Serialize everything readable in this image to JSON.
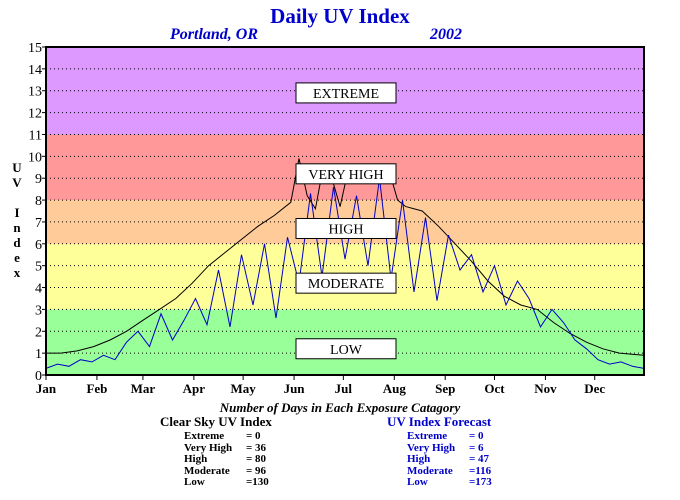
{
  "title": "Daily UV Index",
  "location": "Portland, OR",
  "year": "2002",
  "chart_data": {
    "type": "line",
    "title": "Daily UV Index",
    "ylabel": "UV Index",
    "ylim": [
      0,
      15
    ],
    "yticks": [
      0,
      1,
      2,
      3,
      4,
      5,
      6,
      7,
      8,
      9,
      10,
      11,
      12,
      13,
      14,
      15
    ],
    "xlim": [
      1,
      365
    ],
    "month_labels": [
      "Jan",
      "Feb",
      "Mar",
      "Apr",
      "May",
      "Jun",
      "Jul",
      "Aug",
      "Sep",
      "Oct",
      "Nov",
      "Dec"
    ],
    "grid": true,
    "bands": [
      {
        "label": "LOW",
        "from": 0,
        "to": 3,
        "color": "#99ff99"
      },
      {
        "label": "MODERATE",
        "from": 3,
        "to": 6,
        "color": "#ffff99"
      },
      {
        "label": "HIGH",
        "from": 6,
        "to": 8,
        "color": "#ffcc99"
      },
      {
        "label": "VERY HIGH",
        "from": 8,
        "to": 11,
        "color": "#ff9999"
      },
      {
        "label": "EXTREME",
        "from": 11,
        "to": 15,
        "color": "#dd99ff"
      }
    ],
    "band_label_values": {
      "EXTREME": 12.9,
      "VERY HIGH": 9.2,
      "HIGH": 6.7,
      "MODERATE": 4.2,
      "LOW": 1.2
    },
    "series": [
      {
        "name": "Clear Sky UV Index",
        "color": "#000000",
        "x": [
          1,
          10,
          20,
          30,
          40,
          50,
          60,
          70,
          80,
          90,
          100,
          110,
          120,
          130,
          140,
          150,
          155,
          160,
          165,
          170,
          175,
          180,
          185,
          190,
          195,
          200,
          205,
          210,
          215,
          220,
          230,
          240,
          250,
          260,
          270,
          280,
          290,
          300,
          310,
          320,
          330,
          340,
          350,
          365
        ],
        "y": [
          1.0,
          1.0,
          1.1,
          1.3,
          1.6,
          2.0,
          2.5,
          3.0,
          3.5,
          4.2,
          5.0,
          5.6,
          6.2,
          6.8,
          7.3,
          7.9,
          9.9,
          8.2,
          7.6,
          9.6,
          9.0,
          7.7,
          9.4,
          8.8,
          9.6,
          9.0,
          8.8,
          9.3,
          8.0,
          7.7,
          7.5,
          6.8,
          6.0,
          5.2,
          4.3,
          3.6,
          3.2,
          3.0,
          2.4,
          1.9,
          1.5,
          1.2,
          1.0,
          0.9
        ]
      },
      {
        "name": "UV Index Forecast",
        "color": "#0000cc",
        "x": [
          1,
          8,
          15,
          22,
          29,
          36,
          43,
          50,
          57,
          64,
          71,
          78,
          85,
          92,
          99,
          106,
          113,
          120,
          127,
          134,
          141,
          148,
          155,
          162,
          169,
          176,
          183,
          190,
          197,
          204,
          211,
          218,
          225,
          232,
          239,
          246,
          253,
          260,
          267,
          274,
          281,
          288,
          295,
          302,
          309,
          316,
          323,
          330,
          337,
          344,
          351,
          358,
          365
        ],
        "y": [
          0.3,
          0.5,
          0.4,
          0.7,
          0.6,
          0.9,
          0.7,
          1.5,
          2.0,
          1.3,
          2.8,
          1.6,
          2.5,
          3.5,
          2.3,
          4.8,
          2.2,
          5.5,
          3.2,
          6.0,
          2.6,
          6.3,
          4.2,
          8.3,
          4.5,
          8.6,
          5.3,
          8.2,
          5.0,
          9.0,
          4.4,
          8.0,
          3.8,
          7.2,
          3.4,
          6.4,
          4.8,
          5.5,
          3.8,
          5.0,
          3.2,
          4.3,
          3.5,
          2.2,
          3.0,
          2.4,
          1.6,
          1.2,
          0.7,
          0.5,
          0.6,
          0.4,
          0.3
        ]
      }
    ]
  },
  "stats": {
    "caption": "Number of Days in Each Exposure Catagory",
    "clear_sky": {
      "heading": "Clear Sky UV Index",
      "rows": [
        {
          "label": "Extreme",
          "value": "=    0"
        },
        {
          "label": "Very High",
          "value": "=  36"
        },
        {
          "label": "High",
          "value": "=  80"
        },
        {
          "label": "Moderate",
          "value": "=  96"
        },
        {
          "label": "Low",
          "value": "=130"
        }
      ]
    },
    "forecast": {
      "heading": "UV Index Forecast",
      "rows": [
        {
          "label": "Extreme",
          "value": "=    0"
        },
        {
          "label": "Very High",
          "value": "=    6"
        },
        {
          "label": "High",
          "value": "=  47"
        },
        {
          "label": "Moderate",
          "value": "=116"
        },
        {
          "label": "Low",
          "value": "=173"
        }
      ]
    }
  }
}
